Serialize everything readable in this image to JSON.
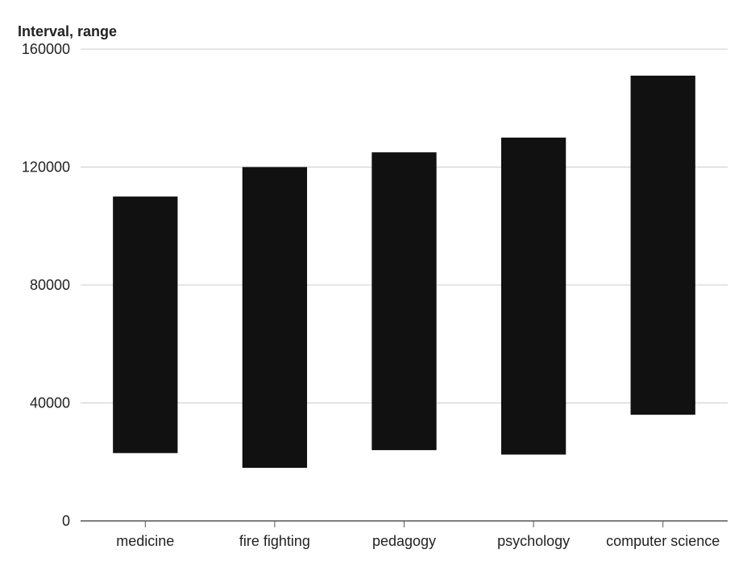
{
  "chart_data": {
    "type": "bar",
    "ylabel": "Interval, range",
    "xlabel": "",
    "title": "",
    "ylim": [
      0,
      160000
    ],
    "yticks": [
      0,
      40000,
      80000,
      120000,
      160000
    ],
    "yticks_labels": [
      "0",
      "40000",
      "80000",
      "120000",
      "160000"
    ],
    "grid": true,
    "categories": [
      "medicine",
      "fire fighting",
      "pedagogy",
      "psychology",
      "computer science"
    ],
    "ranges": [
      {
        "low": 23000,
        "high": 110000
      },
      {
        "low": 18000,
        "high": 120000
      },
      {
        "low": 24000,
        "high": 125000
      },
      {
        "low": 22500,
        "high": 130000
      },
      {
        "low": 36000,
        "high": 151000
      }
    ],
    "bar_color": "#111111"
  }
}
